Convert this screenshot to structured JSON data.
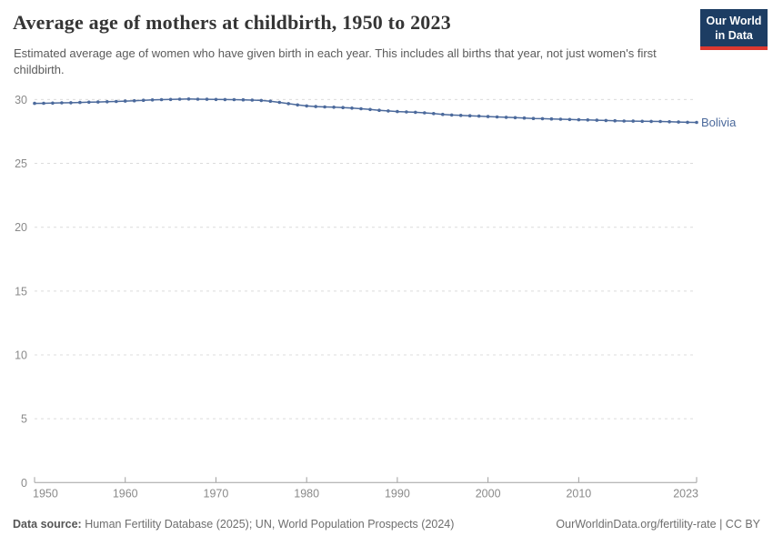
{
  "header": {
    "title": "Average age of mothers at childbirth, 1950 to 2023",
    "subtitle": "Estimated average age of women who have given birth in each year. This includes all births that year, not just women's first childbirth.",
    "logo": {
      "line1": "Our World",
      "line2": "in Data",
      "bg_color": "#1d3d63",
      "bar_color": "#dc3830"
    }
  },
  "chart_data": {
    "type": "line",
    "title": "Average age of mothers at childbirth, 1950 to 2023",
    "xlabel": "",
    "ylabel": "",
    "ylim": [
      0,
      30.5
    ],
    "yticks": [
      0,
      5,
      10,
      15,
      20,
      25,
      30
    ],
    "xticks": [
      1950,
      1960,
      1970,
      1980,
      1990,
      2000,
      2010,
      2023
    ],
    "grid": "horizontal-dashed",
    "legend_position": "end-of-line-label",
    "axis_color": "#a0a0a0",
    "grid_color": "#dcdcdc",
    "tick_label_color": "#8a8a8a",
    "series": [
      {
        "name": "Bolivia",
        "color": "#4C6A9C",
        "x": [
          1950,
          1951,
          1952,
          1953,
          1954,
          1955,
          1956,
          1957,
          1958,
          1959,
          1960,
          1961,
          1962,
          1963,
          1964,
          1965,
          1966,
          1967,
          1968,
          1969,
          1970,
          1971,
          1972,
          1973,
          1974,
          1975,
          1976,
          1977,
          1978,
          1979,
          1980,
          1981,
          1982,
          1983,
          1984,
          1985,
          1986,
          1987,
          1988,
          1989,
          1990,
          1991,
          1992,
          1993,
          1994,
          1995,
          1996,
          1997,
          1998,
          1999,
          2000,
          2001,
          2002,
          2003,
          2004,
          2005,
          2006,
          2007,
          2008,
          2009,
          2010,
          2011,
          2012,
          2013,
          2014,
          2015,
          2016,
          2017,
          2018,
          2019,
          2020,
          2021,
          2022,
          2023
        ],
        "values": [
          29.7,
          29.71,
          29.72,
          29.74,
          29.75,
          29.77,
          29.79,
          29.81,
          29.83,
          29.85,
          29.88,
          29.91,
          29.94,
          29.97,
          29.99,
          30.01,
          30.03,
          30.04,
          30.03,
          30.02,
          30.01,
          30.0,
          29.99,
          29.98,
          29.96,
          29.93,
          29.87,
          29.78,
          29.68,
          29.58,
          29.5,
          29.45,
          29.42,
          29.4,
          29.37,
          29.33,
          29.28,
          29.22,
          29.16,
          29.11,
          29.06,
          29.03,
          29.0,
          28.96,
          28.9,
          28.84,
          28.79,
          28.76,
          28.73,
          28.7,
          28.67,
          28.64,
          28.61,
          28.58,
          28.55,
          28.52,
          28.5,
          28.48,
          28.46,
          28.44,
          28.42,
          28.4,
          28.38,
          28.36,
          28.34,
          28.32,
          28.31,
          28.3,
          28.29,
          28.28,
          28.26,
          28.24,
          28.22,
          28.21
        ]
      }
    ]
  },
  "footer": {
    "source_label": "Data source:",
    "source_text": " Human Fertility Database (2025); UN, World Population Prospects (2024)",
    "right_text": "OurWorldinData.org/fertility-rate | CC BY"
  }
}
